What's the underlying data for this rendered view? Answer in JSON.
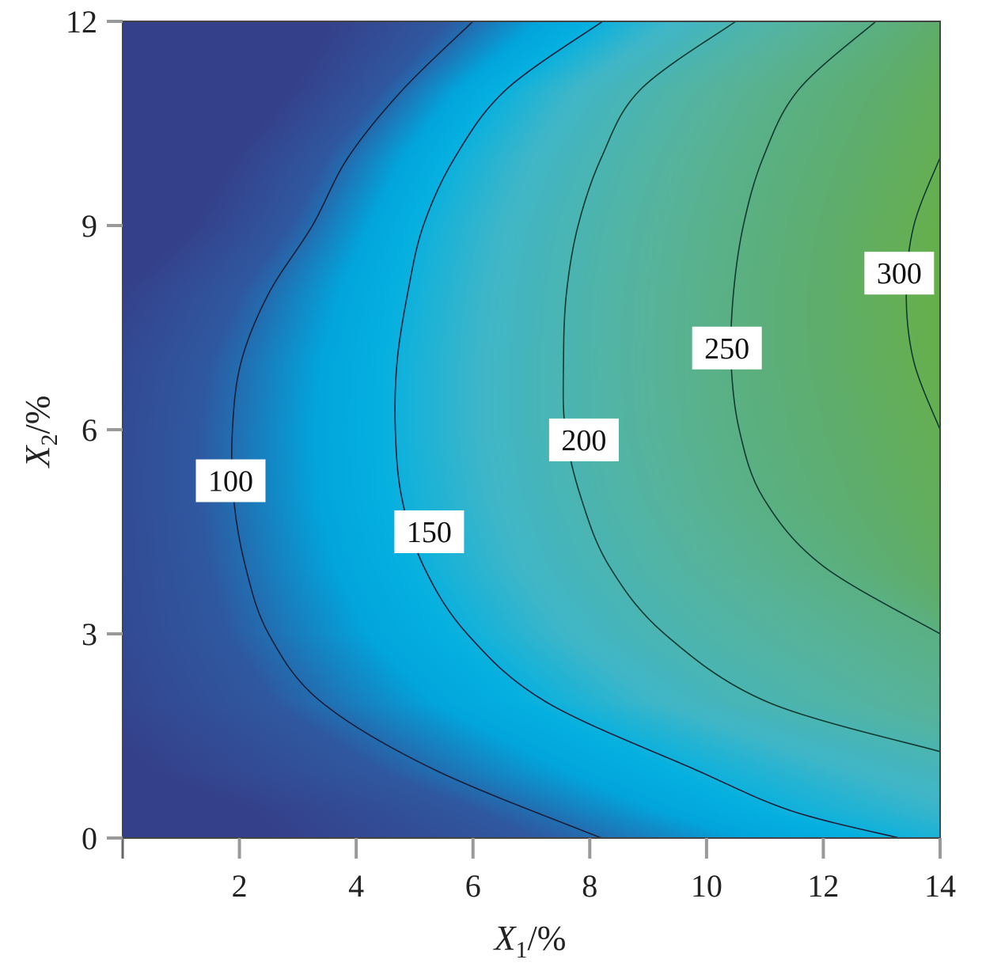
{
  "chart_data": {
    "type": "contour",
    "title": "",
    "xlabel": {
      "var": "X",
      "sub": "1",
      "unit": "/%"
    },
    "ylabel": {
      "var": "X",
      "sub": "2",
      "unit": "/%"
    },
    "xlim": [
      0,
      14
    ],
    "ylim": [
      0,
      12
    ],
    "xticks": [
      2,
      4,
      6,
      8,
      10,
      12,
      14
    ],
    "yticks": [
      0,
      3,
      6,
      9,
      12
    ],
    "colorscale": [
      [
        50,
        "#35408a"
      ],
      [
        90,
        "#2f58a0"
      ],
      [
        125,
        "#02a5dc"
      ],
      [
        145,
        "#05b0e0"
      ],
      [
        175,
        "#3fb6c8"
      ],
      [
        225,
        "#57b39a"
      ],
      [
        275,
        "#5ead6c"
      ],
      [
        320,
        "#6ab040"
      ]
    ],
    "contours": [
      {
        "level": 100,
        "label": "100",
        "label_at": [
          1.85,
          5.25
        ],
        "points": [
          [
            6.0,
            12
          ],
          [
            4.8,
            11
          ],
          [
            3.86,
            10
          ],
          [
            3.25,
            9
          ],
          [
            2.5,
            8
          ],
          [
            2.03,
            7
          ],
          [
            1.88,
            6
          ],
          [
            1.9,
            5
          ],
          [
            2.1,
            4
          ],
          [
            2.5,
            3
          ],
          [
            3.4,
            2
          ],
          [
            5.35,
            1
          ],
          [
            8.2,
            0
          ]
        ]
      },
      {
        "level": 150,
        "label": "150",
        "label_at": [
          5.25,
          4.5
        ],
        "points": [
          [
            8.22,
            12
          ],
          [
            6.57,
            11
          ],
          [
            5.69,
            10
          ],
          [
            5.15,
            9
          ],
          [
            4.88,
            8
          ],
          [
            4.7,
            7
          ],
          [
            4.67,
            6
          ],
          [
            4.78,
            5
          ],
          [
            5.15,
            4
          ],
          [
            5.9,
            3
          ],
          [
            7.25,
            2
          ],
          [
            9.82,
            1
          ],
          [
            11.45,
            0.4
          ],
          [
            13.3,
            0
          ]
        ]
      },
      {
        "level": 200,
        "label": "200",
        "label_at": [
          7.9,
          5.85
        ],
        "points": [
          [
            10.5,
            12
          ],
          [
            8.87,
            11
          ],
          [
            8.2,
            10
          ],
          [
            7.8,
            9
          ],
          [
            7.6,
            8
          ],
          [
            7.55,
            7
          ],
          [
            7.58,
            6
          ],
          [
            7.85,
            5
          ],
          [
            8.33,
            4
          ],
          [
            9.28,
            3
          ],
          [
            11.04,
            2
          ],
          [
            14,
            1.27
          ]
        ]
      },
      {
        "level": 250,
        "label": "250",
        "label_at": [
          10.35,
          7.2
        ],
        "points": [
          [
            12.9,
            12
          ],
          [
            11.58,
            11
          ],
          [
            10.97,
            10
          ],
          [
            10.63,
            9
          ],
          [
            10.46,
            8
          ],
          [
            10.42,
            7
          ],
          [
            10.56,
            6
          ],
          [
            10.97,
            5
          ],
          [
            11.99,
            4
          ],
          [
            14,
            3
          ]
        ]
      },
      {
        "level": 300,
        "label": "300",
        "label_at": [
          13.3,
          8.3
        ],
        "points": [
          [
            14,
            10
          ],
          [
            13.55,
            9
          ],
          [
            13.42,
            8
          ],
          [
            13.55,
            7
          ],
          [
            14,
            6
          ]
        ]
      }
    ]
  }
}
